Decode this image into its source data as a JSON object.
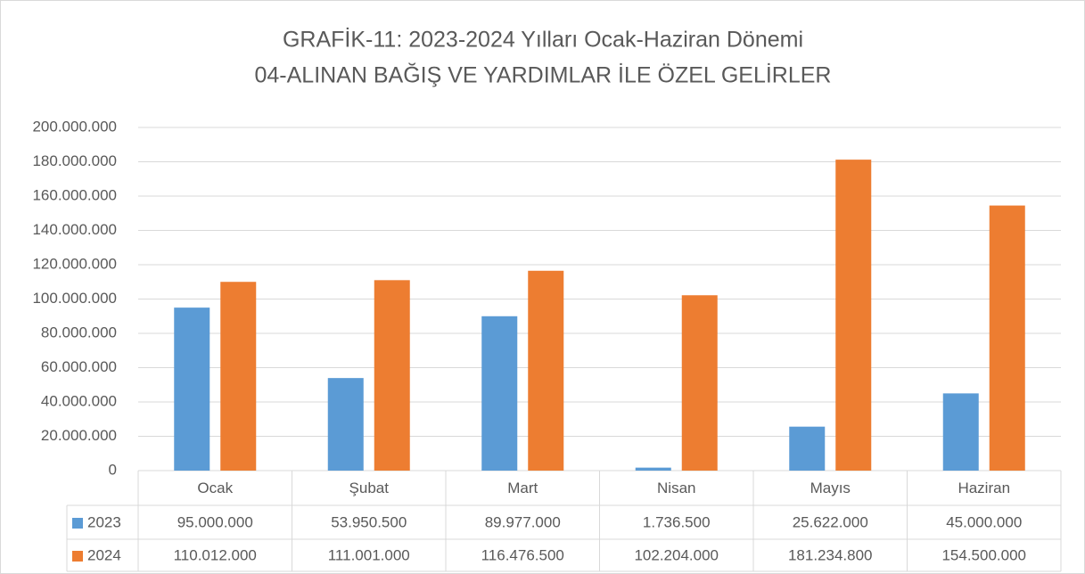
{
  "chart_data": {
    "type": "bar",
    "title": "GRAFİK-11: 2023-2024 Yılları Ocak-Haziran Dönemi",
    "subtitle": "04-ALINAN BAĞIŞ VE YARDIMLAR İLE ÖZEL GELİRLER",
    "categories": [
      "Ocak",
      "Şubat",
      "Mart",
      "Nisan",
      "Mayıs",
      "Haziran"
    ],
    "series": [
      {
        "name": "2023",
        "color": "#5b9bd5",
        "values": [
          95000000,
          53950500,
          89977000,
          1736500,
          25622000,
          45000000
        ],
        "value_labels": [
          "95.000.000",
          "53.950.500",
          "89.977.000",
          "1.736.500",
          "25.622.000",
          "45.000.000"
        ]
      },
      {
        "name": "2024",
        "color": "#ed7d31",
        "values": [
          110012000,
          111001000,
          116476500,
          102204000,
          181234800,
          154500000
        ],
        "value_labels": [
          "110.012.000",
          "111.001.000",
          "116.476.500",
          "102.204.000",
          "181.234.800",
          "154.500.000"
        ]
      }
    ],
    "ylim": [
      0,
      200000000
    ],
    "yticks": [
      0,
      {
        "value": 20000000,
        "label": "20.000.000"
      },
      {
        "value": 40000000,
        "label": "40.000.000"
      },
      {
        "value": 60000000,
        "label": "60.000.000"
      },
      {
        "value": 80000000,
        "label": "80.000.000"
      },
      {
        "value": 100000000,
        "label": "100.000.000"
      },
      {
        "value": 120000000,
        "label": "120.000.000"
      },
      {
        "value": 140000000,
        "label": "140.000.000"
      },
      {
        "value": 160000000,
        "label": "160.000.000"
      },
      {
        "value": 180000000,
        "label": "180.000.000"
      },
      {
        "value": 200000000,
        "label": "200.000.000"
      }
    ],
    "grid": true
  }
}
